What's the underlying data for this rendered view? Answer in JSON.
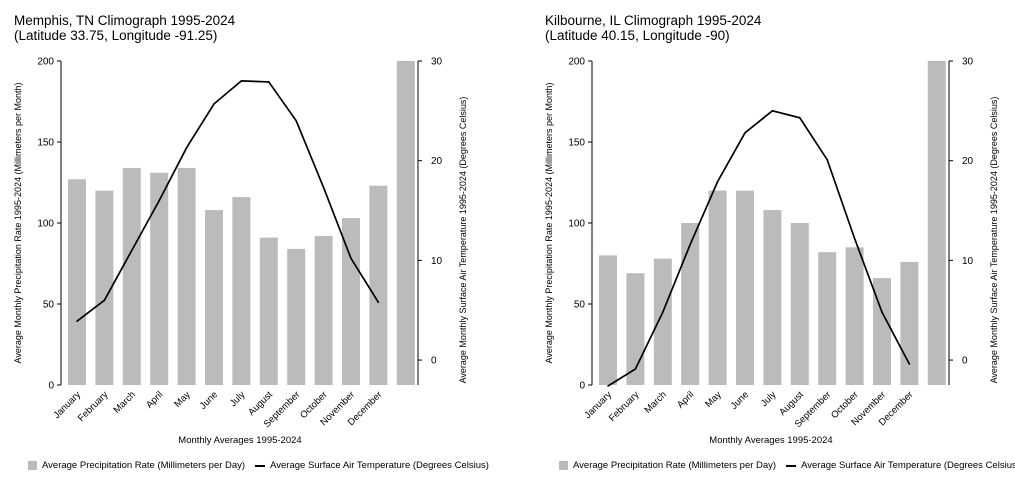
{
  "chart_data": [
    {
      "type": "bar+line",
      "title": "Memphis, TN Climograph 1995-2024",
      "subtitle": "(Latitude 33.75, Longitude -91.25)",
      "xlabel": "Monthly Averages 1995-2024",
      "ylabel_left": "Average Monthly Precipitation Rate 1995-2024 (Millimeters per Month)",
      "ylabel_right": "Average Monthly Surface Air Temperature 1995-2024 (Degrees Celsius)",
      "ylim_left": [
        0,
        200
      ],
      "ylim_right": [
        -2.5,
        30
      ],
      "yticks_left": [
        "0",
        "50",
        "100",
        "150",
        "200"
      ],
      "yticks_right": [
        "0",
        "10",
        "20",
        "30"
      ],
      "categories": [
        "January",
        "February",
        "March",
        "April",
        "May",
        "June",
        "July",
        "August",
        "September",
        "October",
        "November",
        "December"
      ],
      "series": [
        {
          "name": "Average Precipitation Rate (Millimeters per Day)",
          "kind": "bar",
          "axis": "left",
          "values": [
            127,
            120,
            134,
            131,
            134,
            108,
            116,
            91,
            84,
            92,
            103,
            123
          ]
        },
        {
          "name": "Average Surface Air Temperature (Degrees Celsius)",
          "kind": "line",
          "axis": "right",
          "values": [
            3.9,
            6.0,
            11.0,
            16.0,
            21.3,
            25.7,
            28.0,
            27.9,
            24.0,
            17.3,
            10.2,
            5.8
          ]
        }
      ],
      "extra_bar_value": 200,
      "legend_position": "bottom",
      "colors": {
        "bar": "#bbbbbb",
        "line": "#000000"
      }
    },
    {
      "type": "bar+line",
      "title": "Kilbourne, IL Climograph 1995-2024",
      "subtitle": "(Latitude 40.15, Longitude -90)",
      "xlabel": "Monthly Averages 1995-2024",
      "ylabel_left": "Average Monthly Precipitation Rate 1995-2024 (Millimeters per Month)",
      "ylabel_right": "Average Monthly Surface Air Temperature 1995-2024 (Degrees Celsius)",
      "ylim_left": [
        0,
        200
      ],
      "ylim_right": [
        -2.5,
        30
      ],
      "yticks_left": [
        "0",
        "50",
        "100",
        "150",
        "200"
      ],
      "yticks_right": [
        "0",
        "10",
        "20",
        "30"
      ],
      "categories": [
        "January",
        "February",
        "March",
        "April",
        "May",
        "June",
        "July",
        "August",
        "September",
        "October",
        "November",
        "December"
      ],
      "series": [
        {
          "name": "Average Precipitation Rate (Millimeters per Day)",
          "kind": "bar",
          "axis": "left",
          "values": [
            80,
            69,
            78,
            100,
            120,
            120,
            108,
            100,
            82,
            85,
            66,
            76
          ]
        },
        {
          "name": "Average Surface Air Temperature (Degrees Celsius)",
          "kind": "line",
          "axis": "right",
          "values": [
            -2.6,
            -0.9,
            4.8,
            11.6,
            17.9,
            22.8,
            25.0,
            24.3,
            20.1,
            12.2,
            4.8,
            -0.4
          ]
        }
      ],
      "extra_bar_value": 200,
      "legend_position": "bottom",
      "colors": {
        "bar": "#bbbbbb",
        "line": "#000000"
      }
    }
  ]
}
